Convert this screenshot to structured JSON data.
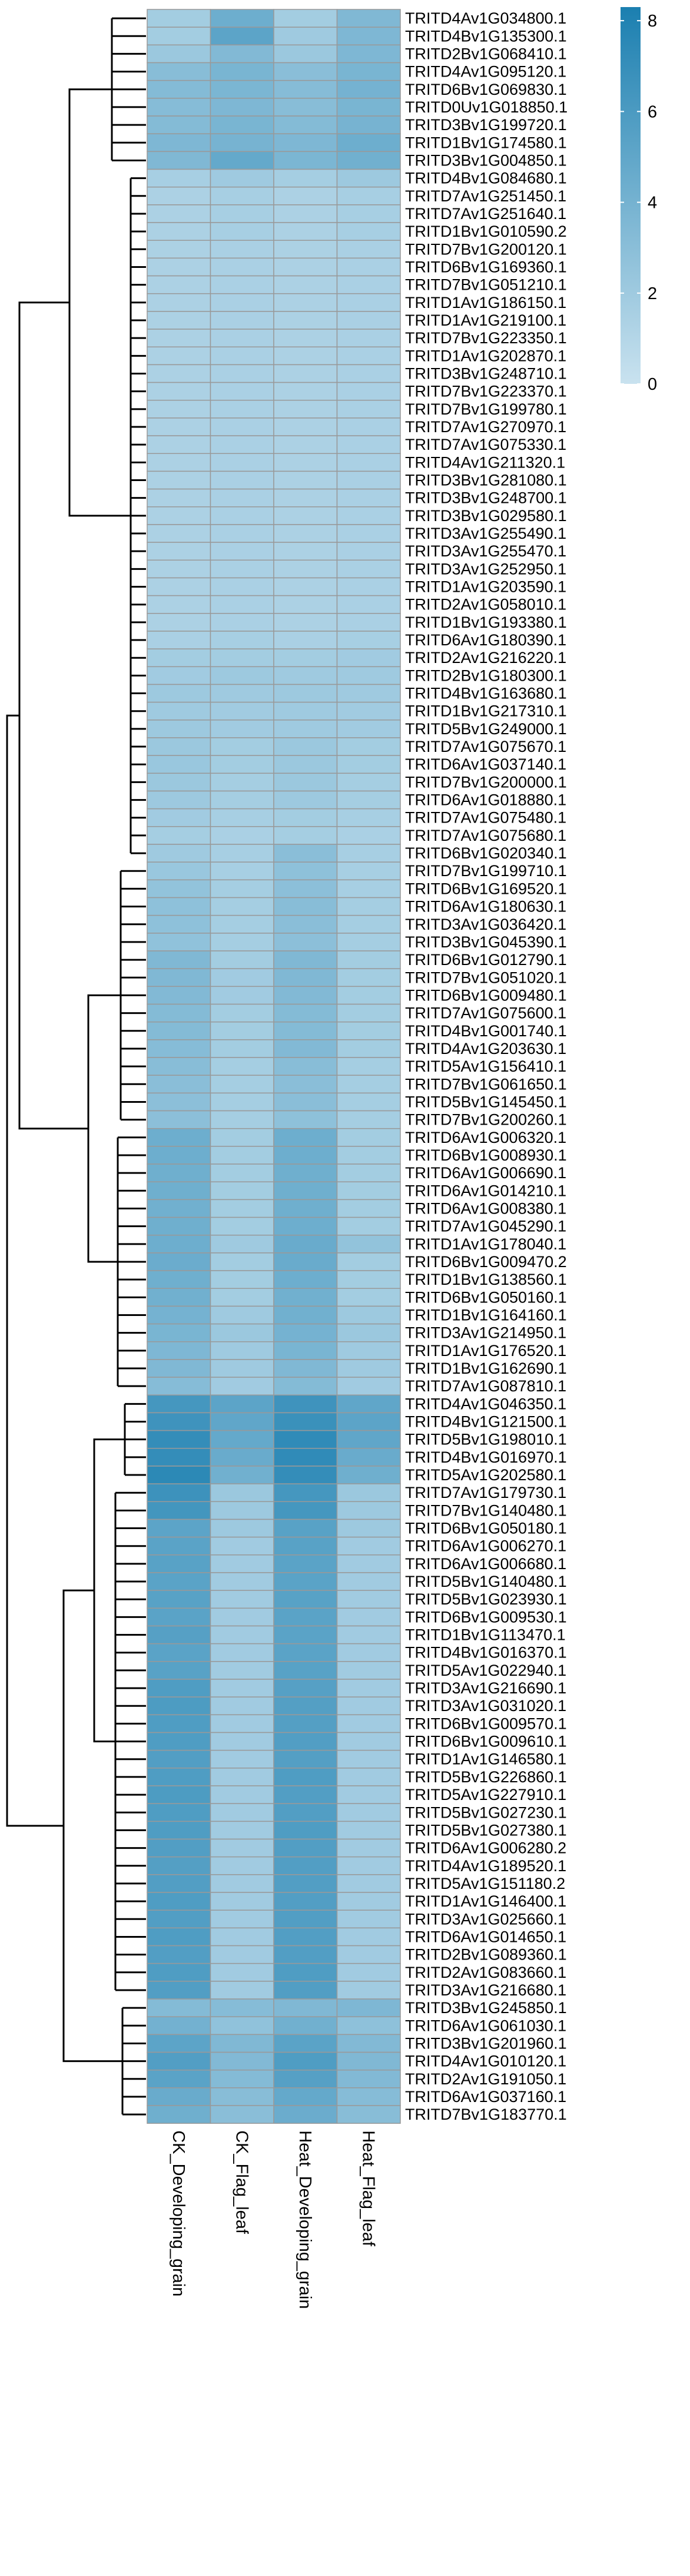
{
  "chart_data": {
    "type": "heatmap",
    "title": "",
    "columns": [
      "CK_Developing_grain",
      "CK_Flag_leaf",
      "Heat_Developing_grain",
      "Heat_Flag_leaf"
    ],
    "rows": [
      "TRITD4Av1G034800.1",
      "TRITD4Bv1G135300.1",
      "TRITD2Bv1G068410.1",
      "TRITD4Av1G095120.1",
      "TRITD6Bv1G069830.1",
      "TRITD0Uv1G018850.1",
      "TRITD3Bv1G199720.1",
      "TRITD1Bv1G174580.1",
      "TRITD3Bv1G004850.1",
      "TRITD4Bv1G084680.1",
      "TRITD7Av1G251450.1",
      "TRITD7Av1G251640.1",
      "TRITD1Bv1G010590.2",
      "TRITD7Bv1G200120.1",
      "TRITD6Bv1G169360.1",
      "TRITD7Bv1G051210.1",
      "TRITD1Av1G186150.1",
      "TRITD1Av1G219100.1",
      "TRITD7Bv1G223350.1",
      "TRITD1Av1G202870.1",
      "TRITD3Bv1G248710.1",
      "TRITD7Bv1G223370.1",
      "TRITD7Bv1G199780.1",
      "TRITD7Av1G270970.1",
      "TRITD7Av1G075330.1",
      "TRITD4Av1G211320.1",
      "TRITD3Bv1G281080.1",
      "TRITD3Bv1G248700.1",
      "TRITD3Bv1G029580.1",
      "TRITD3Av1G255490.1",
      "TRITD3Av1G255470.1",
      "TRITD3Av1G252950.1",
      "TRITD1Av1G203590.1",
      "TRITD2Av1G058010.1",
      "TRITD1Bv1G193380.1",
      "TRITD6Av1G180390.1",
      "TRITD2Av1G216220.1",
      "TRITD2Bv1G180300.1",
      "TRITD4Bv1G163680.1",
      "TRITD1Bv1G217310.1",
      "TRITD5Bv1G249000.1",
      "TRITD7Av1G075670.1",
      "TRITD6Av1G037140.1",
      "TRITD7Bv1G200000.1",
      "TRITD6Av1G018880.1",
      "TRITD7Av1G075480.1",
      "TRITD7Av1G075680.1",
      "TRITD6Bv1G020340.1",
      "TRITD7Bv1G199710.1",
      "TRITD6Bv1G169520.1",
      "TRITD6Av1G180630.1",
      "TRITD3Av1G036420.1",
      "TRITD3Bv1G045390.1",
      "TRITD6Bv1G012790.1",
      "TRITD7Bv1G051020.1",
      "TRITD6Bv1G009480.1",
      "TRITD7Av1G075600.1",
      "TRITD4Bv1G001740.1",
      "TRITD4Av1G203630.1",
      "TRITD5Av1G156410.1",
      "TRITD7Bv1G061650.1",
      "TRITD5Bv1G145450.1",
      "TRITD7Bv1G200260.1",
      "TRITD6Av1G006320.1",
      "TRITD6Bv1G008930.1",
      "TRITD6Av1G006690.1",
      "TRITD6Av1G014210.1",
      "TRITD6Av1G008380.1",
      "TRITD7Av1G045290.1",
      "TRITD1Av1G178040.1",
      "TRITD6Bv1G009470.2",
      "TRITD1Bv1G138560.1",
      "TRITD6Bv1G050160.1",
      "TRITD1Bv1G164160.1",
      "TRITD3Av1G214950.1",
      "TRITD1Av1G176520.1",
      "TRITD1Bv1G162690.1",
      "TRITD7Av1G087810.1",
      "TRITD4Av1G046350.1",
      "TRITD4Bv1G121500.1",
      "TRITD5Bv1G198010.1",
      "TRITD4Bv1G016970.1",
      "TRITD5Av1G202580.1",
      "TRITD7Av1G179730.1",
      "TRITD7Bv1G140480.1",
      "TRITD6Bv1G050180.1",
      "TRITD6Av1G006270.1",
      "TRITD6Av1G006680.1",
      "TRITD5Bv1G140480.1",
      "TRITD5Bv1G023930.1",
      "TRITD6Bv1G009530.1",
      "TRITD1Bv1G113470.1",
      "TRITD4Bv1G016370.1",
      "TRITD5Av1G022940.1",
      "TRITD3Av1G216690.1",
      "TRITD3Av1G031020.1",
      "TRITD6Bv1G009570.1",
      "TRITD6Bv1G009610.1",
      "TRITD1Av1G146580.1",
      "TRITD5Bv1G226860.1",
      "TRITD5Av1G227910.1",
      "TRITD5Bv1G027230.1",
      "TRITD5Bv1G027380.1",
      "TRITD6Av1G006280.2",
      "TRITD4Av1G189520.1",
      "TRITD5Av1G151180.2",
      "TRITD1Av1G146400.1",
      "TRITD3Av1G025660.1",
      "TRITD6Av1G014650.1",
      "TRITD2Bv1G089360.1",
      "TRITD2Av1G083660.1",
      "TRITD3Av1G216680.1",
      "TRITD3Bv1G245850.1",
      "TRITD6Av1G061030.1",
      "TRITD3Bv1G201960.1",
      "TRITD4Av1G010120.1",
      "TRITD2Av1G191050.1",
      "TRITD6Av1G037160.1",
      "TRITD7Bv1G183770.1"
    ],
    "values": [
      [
        1.8,
        4.4,
        1.8,
        3.5
      ],
      [
        1.8,
        5.2,
        2.0,
        3.6
      ],
      [
        2.2,
        3.4,
        2.2,
        3.6
      ],
      [
        3.1,
        3.8,
        3.0,
        3.8
      ],
      [
        3.3,
        3.7,
        3.2,
        4.0
      ],
      [
        3.2,
        3.6,
        3.1,
        3.8
      ],
      [
        3.3,
        3.8,
        3.3,
        3.9
      ],
      [
        3.6,
        3.9,
        3.6,
        4.4
      ],
      [
        3.5,
        4.8,
        3.7,
        4.2
      ],
      [
        1.6,
        2.0,
        1.7,
        2.1
      ],
      [
        1.4,
        1.6,
        1.4,
        1.6
      ],
      [
        1.4,
        1.6,
        1.4,
        1.6
      ],
      [
        1.4,
        1.6,
        1.4,
        1.6
      ],
      [
        1.4,
        1.5,
        1.4,
        1.5
      ],
      [
        1.4,
        1.5,
        1.4,
        1.5
      ],
      [
        1.4,
        1.5,
        1.4,
        1.5
      ],
      [
        1.4,
        1.5,
        1.4,
        1.5
      ],
      [
        1.4,
        1.5,
        1.4,
        1.5
      ],
      [
        1.4,
        1.5,
        1.4,
        1.5
      ],
      [
        1.4,
        1.5,
        1.4,
        1.5
      ],
      [
        1.4,
        1.5,
        1.4,
        1.5
      ],
      [
        1.4,
        1.5,
        1.4,
        1.5
      ],
      [
        1.4,
        1.5,
        1.4,
        1.5
      ],
      [
        1.4,
        1.5,
        1.4,
        1.5
      ],
      [
        1.4,
        1.5,
        1.4,
        1.5
      ],
      [
        1.4,
        1.5,
        1.4,
        1.5
      ],
      [
        1.4,
        1.5,
        1.4,
        1.5
      ],
      [
        1.4,
        1.5,
        1.4,
        1.5
      ],
      [
        1.4,
        1.5,
        1.4,
        1.5
      ],
      [
        1.4,
        1.5,
        1.4,
        1.5
      ],
      [
        1.4,
        1.5,
        1.4,
        1.5
      ],
      [
        1.4,
        1.5,
        1.4,
        1.5
      ],
      [
        1.4,
        1.5,
        1.4,
        1.5
      ],
      [
        1.4,
        1.5,
        1.4,
        1.5
      ],
      [
        1.4,
        1.5,
        1.4,
        1.5
      ],
      [
        1.5,
        1.6,
        1.5,
        1.6
      ],
      [
        1.8,
        1.8,
        1.8,
        1.9
      ],
      [
        1.9,
        2.1,
        2.0,
        2.0
      ],
      [
        2.1,
        2.0,
        2.1,
        2.0
      ],
      [
        2.0,
        1.9,
        2.0,
        1.9
      ],
      [
        2.1,
        1.9,
        2.0,
        1.9
      ],
      [
        2.2,
        1.8,
        2.2,
        1.8
      ],
      [
        2.3,
        1.8,
        2.2,
        1.8
      ],
      [
        2.2,
        1.7,
        2.2,
        1.7
      ],
      [
        2.1,
        1.7,
        2.1,
        1.7
      ],
      [
        1.9,
        1.6,
        1.8,
        1.6
      ],
      [
        1.7,
        1.5,
        1.7,
        1.5
      ],
      [
        2.0,
        1.6,
        3.0,
        1.6
      ],
      [
        2.3,
        1.6,
        2.8,
        1.6
      ],
      [
        2.6,
        1.7,
        2.9,
        1.6
      ],
      [
        2.8,
        1.7,
        3.1,
        1.7
      ],
      [
        2.8,
        1.7,
        3.0,
        1.7
      ],
      [
        2.7,
        1.7,
        2.9,
        1.7
      ],
      [
        3.5,
        1.8,
        3.5,
        1.8
      ],
      [
        3.5,
        1.9,
        3.5,
        1.8
      ],
      [
        3.4,
        1.9,
        3.4,
        1.8
      ],
      [
        3.3,
        1.8,
        3.3,
        1.8
      ],
      [
        3.3,
        1.8,
        3.3,
        1.8
      ],
      [
        3.2,
        1.8,
        3.4,
        1.8
      ],
      [
        3.1,
        1.7,
        3.1,
        1.7
      ],
      [
        3.0,
        1.7,
        3.0,
        1.7
      ],
      [
        2.9,
        1.7,
        3.0,
        1.7
      ],
      [
        2.9,
        1.7,
        2.8,
        1.7
      ],
      [
        4.4,
        1.8,
        4.4,
        1.8
      ],
      [
        4.4,
        1.8,
        4.4,
        1.8
      ],
      [
        4.3,
        1.8,
        4.3,
        1.8
      ],
      [
        4.3,
        1.8,
        4.3,
        1.8
      ],
      [
        4.2,
        1.8,
        4.3,
        1.8
      ],
      [
        4.3,
        1.8,
        4.4,
        1.8
      ],
      [
        4.4,
        2.0,
        4.6,
        2.6
      ],
      [
        4.5,
        1.8,
        4.6,
        1.8
      ],
      [
        4.3,
        1.8,
        4.4,
        1.8
      ],
      [
        4.2,
        1.8,
        4.2,
        1.8
      ],
      [
        4.0,
        2.0,
        4.2,
        2.1
      ],
      [
        3.8,
        2.2,
        4.0,
        2.2
      ],
      [
        3.6,
        2.0,
        3.8,
        2.0
      ],
      [
        3.5,
        2.0,
        3.5,
        2.0
      ],
      [
        3.2,
        1.9,
        3.3,
        1.9
      ],
      [
        6.3,
        5.2,
        6.6,
        5.0
      ],
      [
        6.6,
        5.0,
        6.8,
        5.2
      ],
      [
        7.1,
        4.8,
        7.3,
        5.0
      ],
      [
        7.1,
        4.6,
        7.3,
        4.6
      ],
      [
        7.5,
        4.2,
        7.1,
        4.3
      ],
      [
        6.7,
        2.2,
        6.3,
        2.2
      ],
      [
        6.4,
        2.1,
        6.3,
        2.1
      ],
      [
        5.2,
        2.1,
        5.4,
        2.1
      ],
      [
        5.3,
        1.9,
        5.4,
        1.9
      ],
      [
        5.4,
        1.9,
        5.3,
        1.9
      ],
      [
        5.3,
        1.9,
        5.3,
        1.9
      ],
      [
        5.4,
        1.9,
        5.4,
        1.9
      ],
      [
        5.3,
        1.9,
        5.3,
        1.9
      ],
      [
        5.5,
        1.9,
        5.3,
        1.9
      ],
      [
        5.3,
        1.9,
        5.3,
        1.9
      ],
      [
        5.4,
        1.9,
        5.4,
        1.9
      ],
      [
        5.8,
        1.9,
        5.5,
        1.9
      ],
      [
        5.9,
        1.9,
        5.6,
        1.9
      ],
      [
        5.8,
        1.9,
        5.6,
        1.9
      ],
      [
        5.8,
        1.9,
        5.7,
        1.9
      ],
      [
        5.7,
        1.9,
        5.6,
        1.9
      ],
      [
        5.8,
        1.9,
        5.8,
        1.9
      ],
      [
        5.9,
        1.9,
        5.7,
        1.9
      ],
      [
        5.8,
        1.9,
        5.7,
        1.9
      ],
      [
        5.8,
        1.9,
        5.8,
        1.9
      ],
      [
        5.7,
        1.9,
        5.7,
        1.9
      ],
      [
        5.6,
        1.9,
        5.7,
        1.9
      ],
      [
        5.7,
        1.9,
        5.7,
        1.9
      ],
      [
        5.8,
        1.9,
        5.7,
        1.9
      ],
      [
        5.7,
        1.9,
        5.7,
        1.9
      ],
      [
        5.8,
        1.9,
        5.7,
        1.9
      ],
      [
        5.7,
        1.9,
        5.7,
        1.9
      ],
      [
        5.8,
        1.9,
        5.8,
        1.9
      ],
      [
        5.7,
        1.9,
        5.7,
        1.9
      ],
      [
        3.3,
        3.2,
        3.5,
        3.6
      ],
      [
        4.1,
        2.7,
        4.2,
        2.8
      ],
      [
        5.2,
        3.5,
        5.3,
        3.4
      ],
      [
        5.7,
        3.4,
        5.8,
        3.5
      ],
      [
        5.3,
        3.3,
        5.5,
        3.4
      ],
      [
        4.6,
        3.1,
        4.8,
        3.2
      ],
      [
        4.3,
        3.0,
        4.5,
        3.1
      ]
    ],
    "legend": {
      "ticks": [
        0,
        2,
        4,
        6,
        8
      ],
      "range": [
        0,
        8.3
      ]
    },
    "colors": {
      "low": "#c9e2ef",
      "high": "#1b7fb0",
      "cell_border": "#999999"
    }
  }
}
